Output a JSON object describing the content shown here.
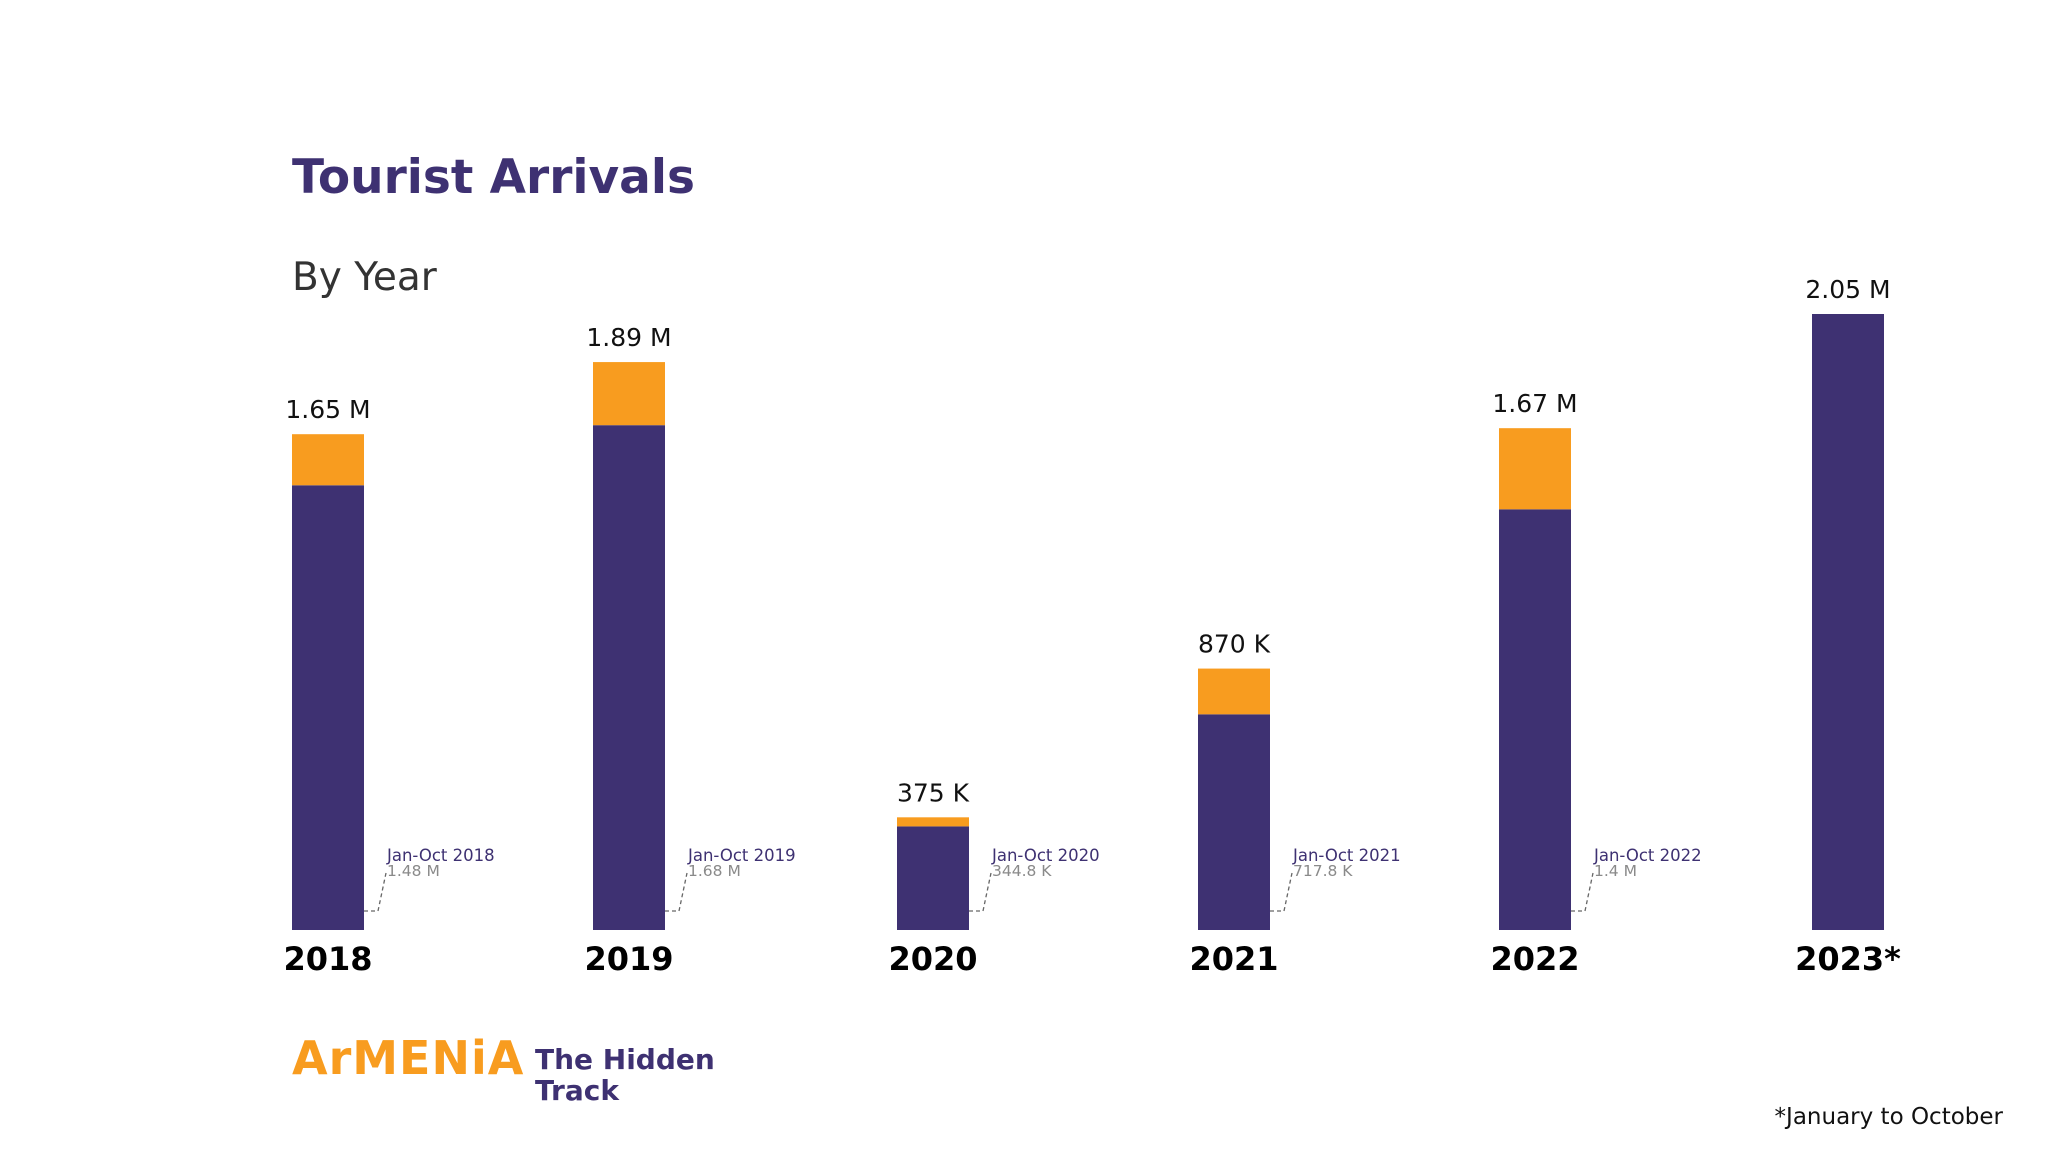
{
  "colors": {
    "primary": "#3e3172",
    "accent": "#f89c1f",
    "muted": "#8a8a8a"
  },
  "chart_data": {
    "type": "bar",
    "stacked": true,
    "title": "Tourist Arrivals",
    "subtitle": "By Year",
    "categories": [
      "2018",
      "2019",
      "2020",
      "2021",
      "2022",
      "2023*"
    ],
    "total_labels": [
      "1.65 M",
      "1.89 M",
      "375 K",
      "870 K",
      "1.67 M",
      "2.05 M"
    ],
    "totals": [
      1.65,
      1.89,
      0.375,
      0.87,
      1.67,
      2.05
    ],
    "jan_oct": [
      1.48,
      1.68,
      0.3448,
      0.7178,
      1.4,
      2.05
    ],
    "jan_oct_labels": [
      {
        "period": "Jan-Oct 2018",
        "value": "1.48 M"
      },
      {
        "period": "Jan-Oct 2019",
        "value": "1.68 M"
      },
      {
        "period": "Jan-Oct 2020",
        "value": "344.8 K"
      },
      {
        "period": "Jan-Oct 2021",
        "value": "717.8 K"
      },
      {
        "period": "Jan-Oct 2022",
        "value": "1.4 M"
      }
    ],
    "units": "millions",
    "ylim": [
      0,
      2.05
    ],
    "grid": false,
    "legend": "none"
  },
  "branding": {
    "logo_word": "ArMENiA",
    "tagline_line1": "The Hidden",
    "tagline_line2": "Track"
  },
  "footnote": "*January to October"
}
